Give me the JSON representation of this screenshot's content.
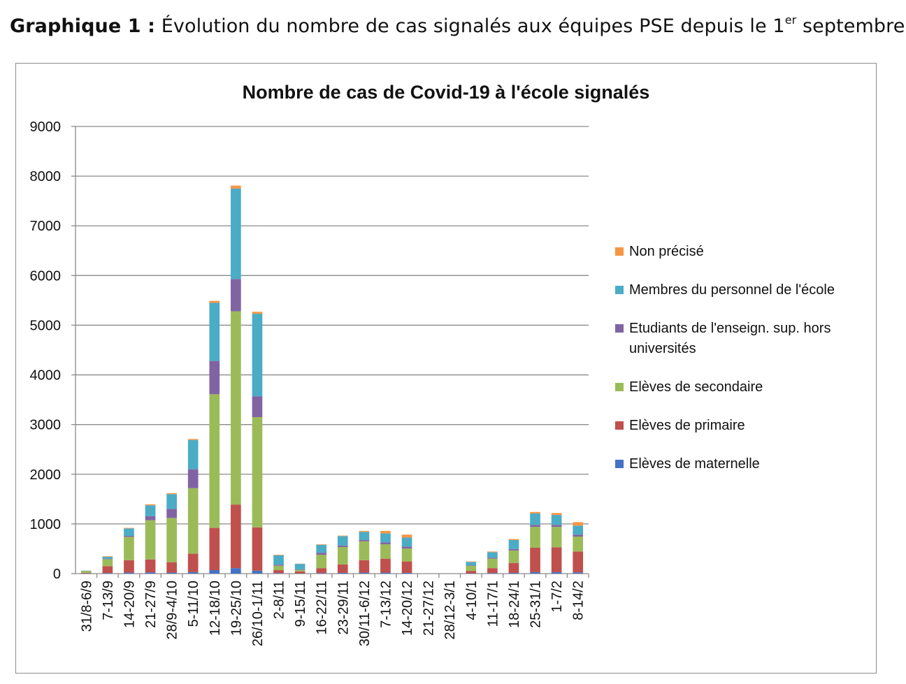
{
  "caption": {
    "label": "Graphique 1 :",
    "text_before": "Évolution du nombre de cas signalés aux équipes PSE depuis le 1",
    "superscript": "er",
    "text_after": " septembre"
  },
  "chart_data": {
    "type": "bar",
    "stacked": true,
    "title": "Nombre de cas de Covid-19 à l'école signalés",
    "xlabel": "",
    "ylabel": "",
    "ylim": [
      0,
      9000
    ],
    "yticks": [
      0,
      1000,
      2000,
      3000,
      4000,
      5000,
      6000,
      7000,
      8000,
      9000
    ],
    "grid": true,
    "legend_position": "right",
    "categories": [
      "31/8-6/9",
      "7-13/9",
      "14-20/9",
      "21-27/9",
      "28/9-4/10",
      "5-11/10",
      "12-18/10",
      "19-25/10",
      "26/10-1/11",
      "2-8/11",
      "9-15/11",
      "16-22/11",
      "23-29/11",
      "30/11-6/12",
      "7-13/12",
      "14-20/12",
      "21-27/12",
      "28/12-3/1",
      "4-10/1",
      "11-17/1",
      "18-24/1",
      "25-31/1",
      "1-7/2",
      "8-14/2"
    ],
    "series": [
      {
        "name": "Elèves de maternelle",
        "color": "#4472C4",
        "values": [
          5,
          10,
          20,
          25,
          20,
          30,
          70,
          110,
          60,
          10,
          5,
          10,
          15,
          20,
          20,
          15,
          0,
          0,
          5,
          10,
          15,
          30,
          30,
          25
        ]
      },
      {
        "name": "Elèves de primaire",
        "color": "#C0504D",
        "values": [
          10,
          140,
          250,
          260,
          210,
          370,
          850,
          1280,
          870,
          60,
          40,
          100,
          170,
          250,
          280,
          230,
          0,
          0,
          50,
          100,
          200,
          490,
          500,
          420
        ]
      },
      {
        "name": "Elèves de secondaire",
        "color": "#9BBB59",
        "values": [
          40,
          140,
          470,
          790,
          890,
          1320,
          2690,
          3890,
          2220,
          90,
          30,
          270,
          350,
          380,
          290,
          260,
          0,
          0,
          100,
          190,
          250,
          420,
          410,
          300
        ]
      },
      {
        "name": "Etudiants de l'enseign. sup. hors universités",
        "color": "#8064A2",
        "values": [
          0,
          10,
          20,
          80,
          180,
          380,
          670,
          650,
          420,
          20,
          10,
          40,
          30,
          30,
          40,
          40,
          0,
          0,
          10,
          20,
          30,
          40,
          40,
          40
        ]
      },
      {
        "name": "Membres du personnel de l'école",
        "color": "#4BACC6",
        "values": [
          5,
          40,
          150,
          220,
          300,
          590,
          1170,
          1820,
          1660,
          190,
          110,
          160,
          190,
          160,
          180,
          180,
          0,
          0,
          70,
          110,
          180,
          230,
          200,
          180
        ]
      },
      {
        "name": "Non précisé",
        "color": "#F79646",
        "values": [
          0,
          10,
          10,
          20,
          20,
          20,
          40,
          60,
          40,
          10,
          5,
          10,
          10,
          20,
          50,
          60,
          0,
          0,
          10,
          15,
          20,
          30,
          40,
          70
        ]
      }
    ],
    "legend_order": [
      5,
      4,
      3,
      2,
      1,
      0
    ]
  }
}
